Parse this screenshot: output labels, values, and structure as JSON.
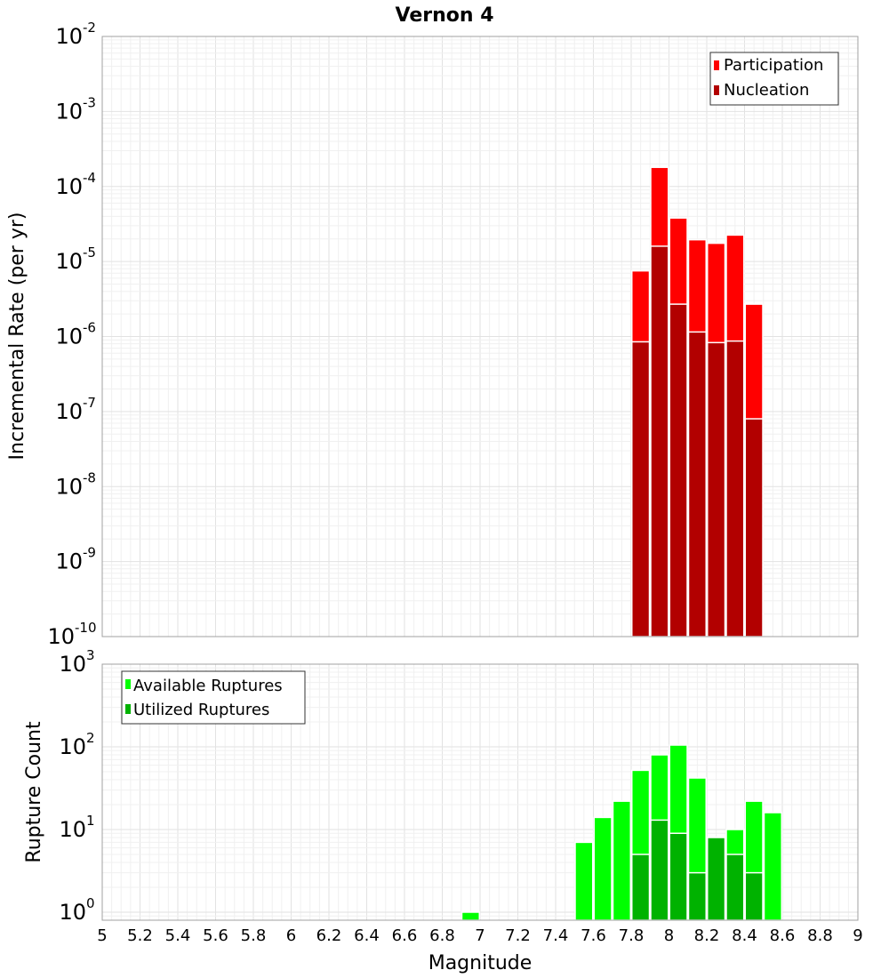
{
  "chart_data": [
    {
      "type": "bar",
      "title": "Vernon 4",
      "xlabel": "",
      "ylabel": "Incremental Rate (per yr)",
      "yscale": "log",
      "ylim": [
        1e-10,
        0.01
      ],
      "xlim": [
        5,
        9
      ],
      "legend_position": "top-right",
      "bin_width": 0.1,
      "x": [
        7.85,
        7.95,
        8.05,
        8.15,
        8.25,
        8.35,
        8.45
      ],
      "series": [
        {
          "name": "Participation",
          "color": "#ff0000",
          "values": [
            7.5e-06,
            0.00018,
            3.8e-05,
            1.95e-05,
            1.75e-05,
            2.25e-05,
            2.7e-06
          ]
        },
        {
          "name": "Nucleation",
          "color": "#b20000",
          "values": [
            8.5e-07,
            1.6e-05,
            2.7e-06,
            1.15e-06,
            8.3e-07,
            8.7e-07,
            8e-08
          ]
        }
      ]
    },
    {
      "type": "bar",
      "title": "",
      "xlabel": "Magnitude",
      "ylabel": "Rupture Count",
      "yscale": "log",
      "ylim": [
        0.8,
        1000
      ],
      "xlim": [
        5,
        9
      ],
      "legend_position": "top-left",
      "bin_width": 0.1,
      "x": [
        6.95,
        7.55,
        7.65,
        7.75,
        7.85,
        7.95,
        8.05,
        8.15,
        8.25,
        8.35,
        8.45,
        8.55
      ],
      "series": [
        {
          "name": "Available Ruptures",
          "color": "#00ff00",
          "values": [
            1,
            7,
            14,
            22,
            52,
            80,
            105,
            42,
            8,
            10,
            22,
            16
          ]
        },
        {
          "name": "Utilized Ruptures",
          "color": "#00b200",
          "values": [
            0,
            0,
            0,
            0,
            5,
            13,
            9,
            3,
            8,
            5,
            3,
            0
          ]
        }
      ]
    }
  ],
  "axes": {
    "top_y_ticks": [
      {
        "base": "10",
        "exp": "-2"
      },
      {
        "base": "10",
        "exp": "-3"
      },
      {
        "base": "10",
        "exp": "-4"
      },
      {
        "base": "10",
        "exp": "-5"
      },
      {
        "base": "10",
        "exp": "-6"
      },
      {
        "base": "10",
        "exp": "-7"
      },
      {
        "base": "10",
        "exp": "-8"
      },
      {
        "base": "10",
        "exp": "-9"
      },
      {
        "base": "10",
        "exp": "-10"
      }
    ],
    "bottom_y_ticks": [
      {
        "base": "10",
        "exp": "3"
      },
      {
        "base": "10",
        "exp": "2"
      },
      {
        "base": "10",
        "exp": "1"
      },
      {
        "base": "10",
        "exp": "0"
      }
    ],
    "x_ticks": [
      "5",
      "5.2",
      "5.4",
      "5.6",
      "5.8",
      "6",
      "6.2",
      "6.4",
      "6.6",
      "6.8",
      "7",
      "7.2",
      "7.4",
      "7.6",
      "7.8",
      "8",
      "8.2",
      "8.4",
      "8.6",
      "8.8",
      "9"
    ]
  }
}
